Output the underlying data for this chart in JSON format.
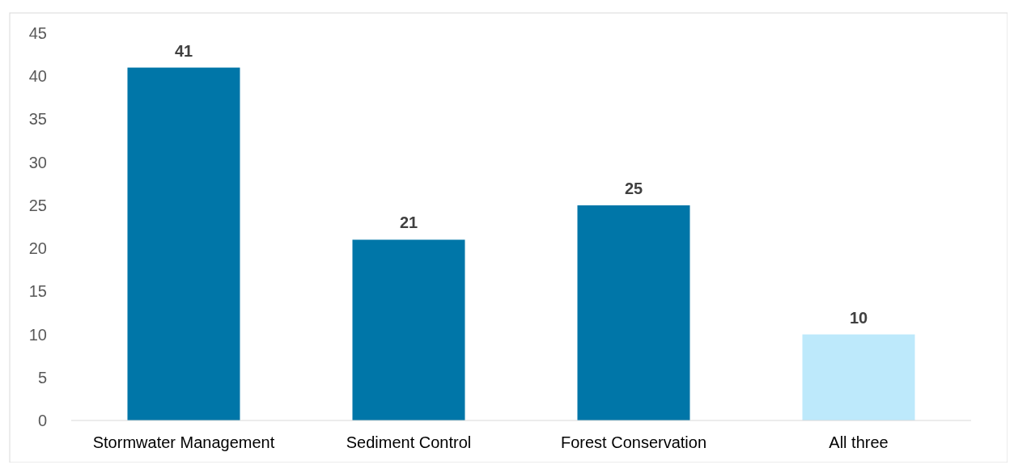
{
  "chart_data": {
    "type": "bar",
    "categories": [
      "Stormwater Management",
      "Sediment Control",
      "Forest Conservation",
      "All three"
    ],
    "values": [
      41,
      21,
      25,
      10
    ],
    "colors": [
      "#0076a8",
      "#0076a8",
      "#0076a8",
      "#bde9fb"
    ],
    "ylim": [
      0,
      45
    ],
    "yticks": [
      0,
      5,
      10,
      15,
      20,
      25,
      30,
      35,
      40,
      45
    ],
    "grid": false,
    "data_labels": true
  }
}
